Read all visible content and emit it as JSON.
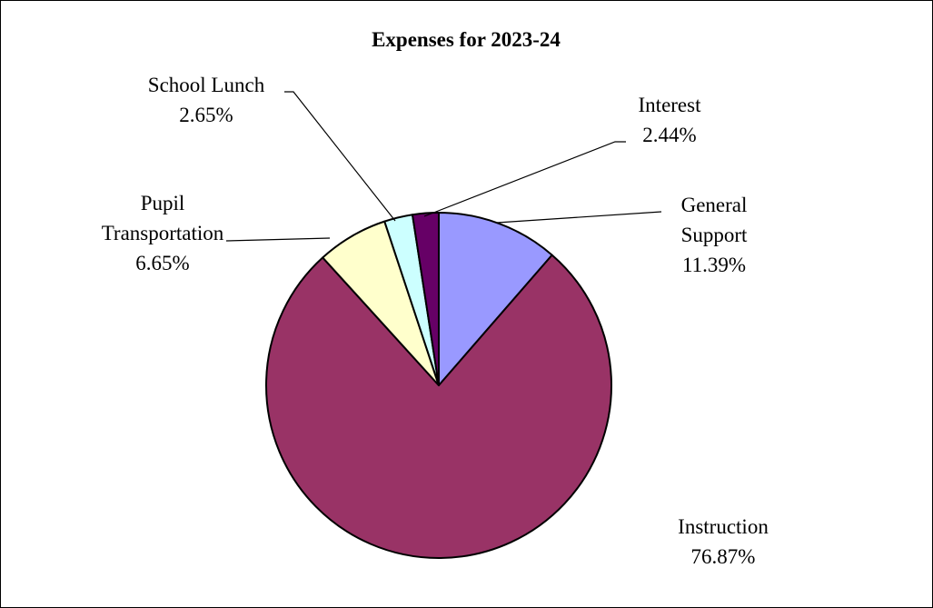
{
  "chart_data": {
    "type": "pie",
    "title": "Expenses for 2023-24",
    "start_angle_deg": 0,
    "direction": "clockwise",
    "slices": [
      {
        "label_lines": [
          "General",
          "Support"
        ],
        "value": 11.39,
        "value_label": "11.39%",
        "color": "#9999ff"
      },
      {
        "label_lines": [
          "Instruction"
        ],
        "value": 76.87,
        "value_label": "76.87%",
        "color": "#993366"
      },
      {
        "label_lines": [
          "Pupil",
          "Transportation"
        ],
        "value": 6.65,
        "value_label": "6.65%",
        "color": "#ffffcc"
      },
      {
        "label_lines": [
          "School Lunch"
        ],
        "value": 2.65,
        "value_label": "2.65%",
        "color": "#ccffff"
      },
      {
        "label_lines": [
          "Interest"
        ],
        "value": 2.44,
        "value_label": "2.44%",
        "color": "#660066"
      }
    ],
    "legend": "none"
  }
}
